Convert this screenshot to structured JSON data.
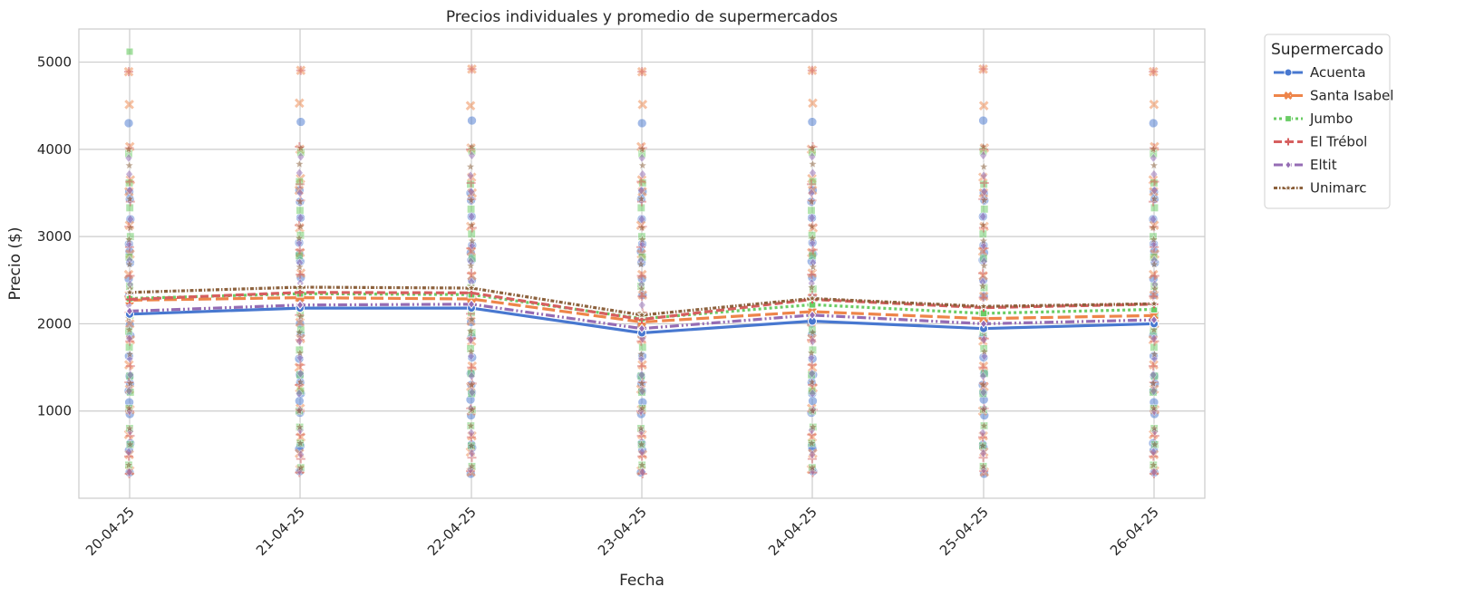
{
  "chart_data": {
    "type": "line",
    "title": "Precios individuales y promedio de supermercados",
    "xlabel": "Fecha",
    "ylabel": "Precio ($)",
    "categories": [
      "20-04-25",
      "21-04-25",
      "22-04-25",
      "23-04-25",
      "24-04-25",
      "25-04-25",
      "26-04-25"
    ],
    "yticks": [
      1000,
      2000,
      3000,
      4000,
      5000
    ],
    "ylim": [
      0,
      5380
    ],
    "grid": true,
    "legend": {
      "title": "Supermercado",
      "position": "outside-right"
    },
    "series": [
      {
        "name": "Acuenta",
        "color": "#4878d0",
        "dash": "solid",
        "marker": "circle",
        "values": [
          2110,
          2180,
          2180,
          1895,
          2030,
          1945,
          2000
        ]
      },
      {
        "name": "Santa Isabel",
        "color": "#ee854a",
        "dash": "long-dash",
        "marker": "x",
        "values": [
          2270,
          2300,
          2285,
          2020,
          2140,
          2060,
          2095
        ]
      },
      {
        "name": "Jumbo",
        "color": "#6acc64",
        "dash": "dotted",
        "marker": "square",
        "values": [
          2290,
          2345,
          2335,
          2060,
          2220,
          2120,
          2165
        ]
      },
      {
        "name": "El Trébol",
        "color": "#d65f5f",
        "dash": "dash",
        "marker": "plus",
        "values": [
          2280,
          2360,
          2355,
          2050,
          2280,
          2185,
          2225
        ]
      },
      {
        "name": "Eltit",
        "color": "#956cb4",
        "dash": "dash-dot-dot",
        "marker": "diamond",
        "values": [
          2145,
          2215,
          2225,
          1945,
          2100,
          2000,
          2045
        ]
      },
      {
        "name": "Unimarc",
        "color": "#8c613c",
        "dash": "dot-dot",
        "marker": "star",
        "values": [
          2360,
          2420,
          2410,
          2100,
          2290,
          2200,
          2230
        ]
      }
    ],
    "individual_prices": {
      "Acuenta": [
        4300,
        3500,
        3400,
        3200,
        2900,
        2800,
        2700,
        2500,
        2300,
        1990,
        1850,
        1600,
        1400,
        1300,
        1200,
        1100,
        950,
        600,
        550,
        280
      ],
      "Santa Isabel": [
        4890,
        4500,
        4000,
        3650,
        3500,
        3100,
        2800,
        2550,
        2300,
        2000,
        1800,
        1500,
        1250,
        1000,
        700,
        500,
        300
      ],
      "Jumbo": [
        3950,
        3600,
        3300,
        3000,
        2750,
        2400,
        2100,
        1900,
        1700,
        1400,
        1200,
        1000,
        800,
        600,
        350
      ],
      "El Trébol": [
        4890,
        4000,
        3600,
        3400,
        3100,
        2850,
        2550,
        2300,
        2100,
        1800,
        1500,
        1300,
        1000,
        700,
        450,
        280
      ],
      "Eltit": [
        3900,
        3700,
        3500,
        3200,
        2900,
        2700,
        2450,
        2200,
        1800,
        1600,
        1400,
        1200,
        1000,
        750,
        500,
        300
      ],
      "Unimarc": [
        4000,
        3800,
        3400,
        3100,
        2950,
        2650,
        2400,
        2050,
        1900,
        1650,
        1300,
        1000,
        800,
        600,
        350
      ]
    },
    "jumbo_extra_first_date": 5120
  }
}
